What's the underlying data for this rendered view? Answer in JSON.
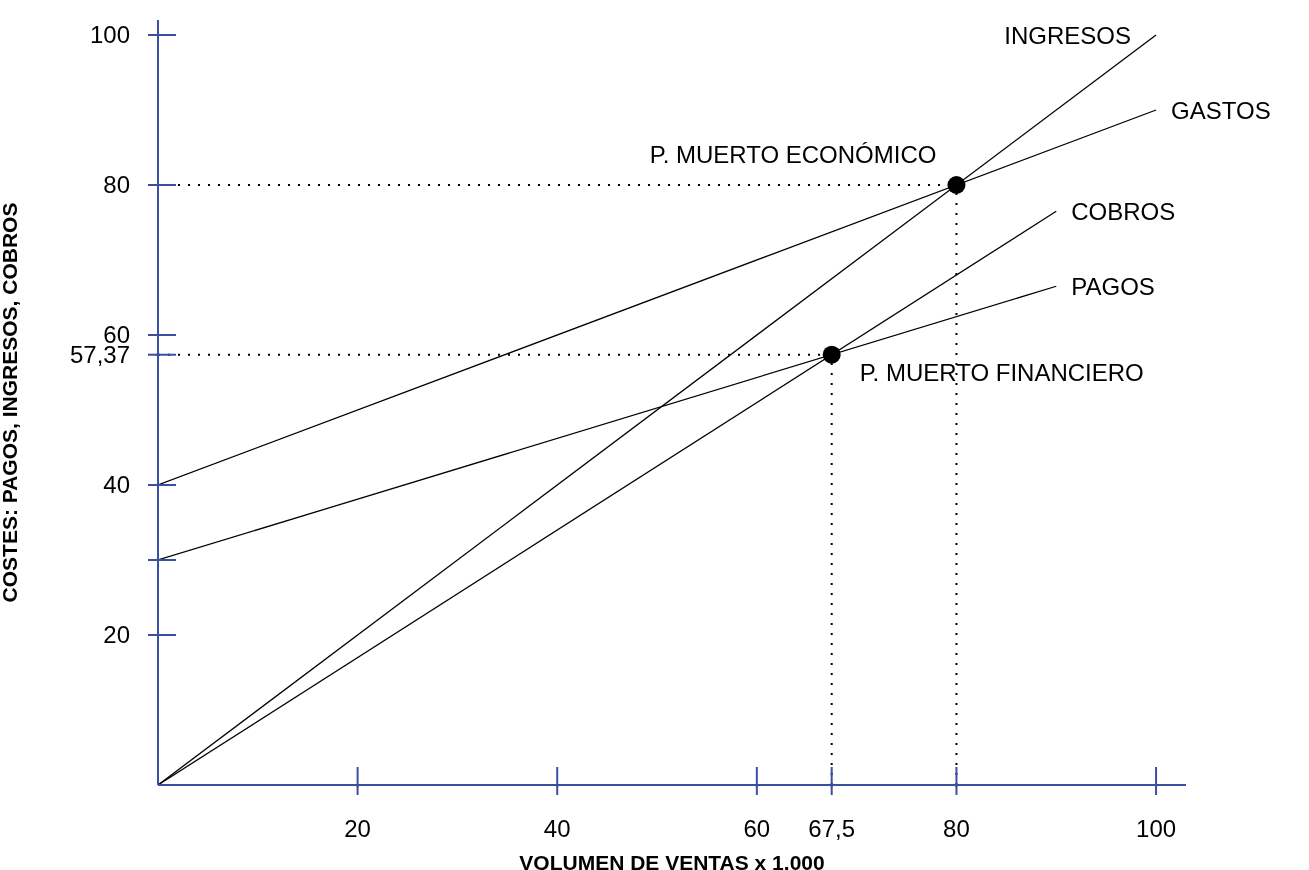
{
  "chart_data": {
    "type": "line",
    "xlabel": "VOLUMEN DE VENTAS x 1.000",
    "ylabel": "COSTES: PAGOS, INGRESOS, COBROS",
    "xlim": [
      0,
      103
    ],
    "ylim": [
      0,
      102
    ],
    "xticks": [
      20,
      40,
      60,
      {
        "value": 67.5,
        "label": "67,5"
      },
      80,
      100
    ],
    "yticks": [
      20,
      {
        "value": 30,
        "label": null
      },
      40,
      {
        "value": 57.37,
        "label": "57,37"
      },
      60,
      80,
      100
    ],
    "grid": false,
    "legend": false,
    "marker": "none",
    "line_style": "solid",
    "series": [
      {
        "name": "INGRESOS",
        "color": "#000000",
        "x": [
          0,
          100
        ],
        "values": [
          0,
          100
        ]
      },
      {
        "name": "GASTOS",
        "color": "#000000",
        "x": [
          0,
          100
        ],
        "values": [
          40,
          90
        ]
      },
      {
        "name": "COBROS",
        "color": "#000000",
        "x": [
          0,
          90
        ],
        "values": [
          0,
          76.5
        ]
      },
      {
        "name": "PAGOS",
        "color": "#000000",
        "x": [
          0,
          90
        ],
        "values": [
          30,
          66.5
        ]
      },
      {
        "type": "scatter",
        "marker": "circle",
        "color": "#000000",
        "x": [
          80,
          67.5
        ],
        "values": [
          80,
          57.37
        ]
      }
    ],
    "ref_lines": [
      {
        "axis": "y",
        "value": 80,
        "line_style": "dotted",
        "color": "#000000"
      },
      {
        "axis": "y",
        "value": 57.37,
        "line_style": "dotted",
        "color": "#000000"
      },
      {
        "axis": "x",
        "value": 67.5,
        "line_style": "dotted",
        "color": "#000000"
      },
      {
        "axis": "x",
        "value": 80,
        "line_style": "dotted",
        "color": "#000000"
      }
    ],
    "annotations": [
      {
        "text": "P. MUERTO ECONÓMICO",
        "x": 80,
        "y": 80
      },
      {
        "text": "P. MUERTO FINANCIERO",
        "x": 67.5,
        "y": 57.37
      }
    ]
  }
}
